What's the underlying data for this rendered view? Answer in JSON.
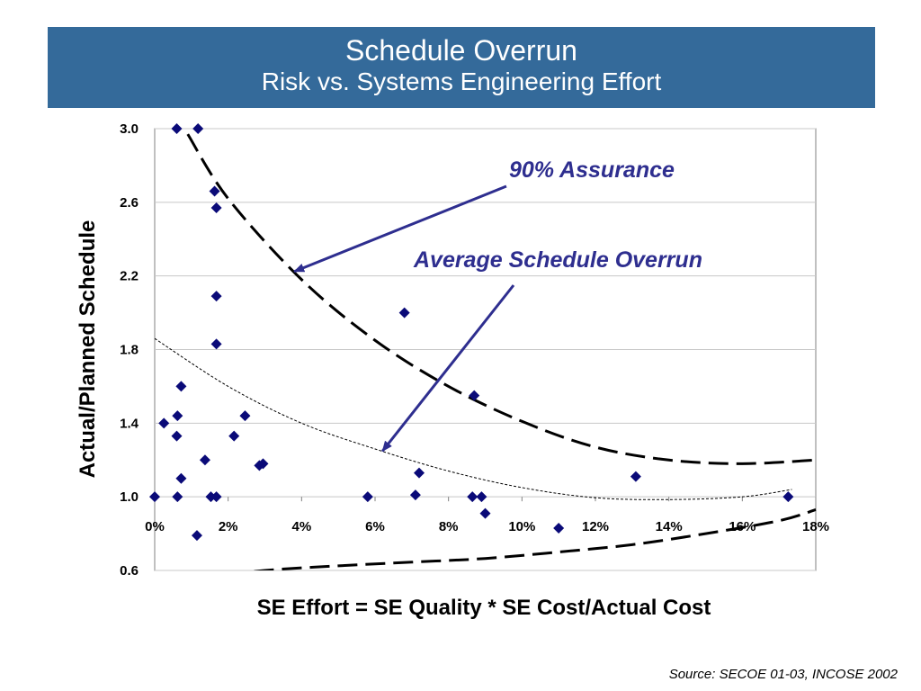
{
  "header": {
    "title": "Schedule Overrun",
    "subtitle": "Risk vs. Systems Engineering Effort"
  },
  "source": "Source: SECOE 01-03, INCOSE 2002",
  "colors": {
    "banner": "#346a9a",
    "marker": "#0a0a78",
    "annotation": "#2e2e8f"
  },
  "chart_data": {
    "type": "scatter",
    "xlabel": "SE Effort = SE Quality * SE Cost/Actual Cost",
    "ylabel": "Actual/Planned Schedule",
    "xlim": [
      0,
      0.18
    ],
    "ylim": [
      0.6,
      3.0
    ],
    "x_ticks": [
      "0%",
      "2%",
      "4%",
      "6%",
      "8%",
      "10%",
      "12%",
      "14%",
      "16%",
      "18%"
    ],
    "y_ticks": [
      "3.0",
      "2.6",
      "2.2",
      "1.8",
      "1.4",
      "1.0",
      "0.6"
    ],
    "grid": "horizontal",
    "points": [
      {
        "x": 0.0,
        "y": 1.0
      },
      {
        "x": 0.0025,
        "y": 1.4
      },
      {
        "x": 0.006,
        "y": 3.0
      },
      {
        "x": 0.006,
        "y": 1.33
      },
      {
        "x": 0.0062,
        "y": 1.44
      },
      {
        "x": 0.0062,
        "y": 1.0
      },
      {
        "x": 0.0072,
        "y": 1.6
      },
      {
        "x": 0.0072,
        "y": 1.1
      },
      {
        "x": 0.0115,
        "y": 0.79
      },
      {
        "x": 0.0118,
        "y": 3.0
      },
      {
        "x": 0.0137,
        "y": 1.2
      },
      {
        "x": 0.0153,
        "y": 1.0
      },
      {
        "x": 0.0163,
        "y": 2.66
      },
      {
        "x": 0.0168,
        "y": 1.0
      },
      {
        "x": 0.0168,
        "y": 2.57
      },
      {
        "x": 0.0168,
        "y": 2.09
      },
      {
        "x": 0.0168,
        "y": 1.83
      },
      {
        "x": 0.0216,
        "y": 1.33
      },
      {
        "x": 0.0246,
        "y": 1.44
      },
      {
        "x": 0.0285,
        "y": 1.17
      },
      {
        "x": 0.0295,
        "y": 1.18
      },
      {
        "x": 0.058,
        "y": 1.0
      },
      {
        "x": 0.068,
        "y": 2.0
      },
      {
        "x": 0.071,
        "y": 1.01
      },
      {
        "x": 0.072,
        "y": 1.13
      },
      {
        "x": 0.0865,
        "y": 1.0
      },
      {
        "x": 0.087,
        "y": 1.55
      },
      {
        "x": 0.089,
        "y": 1.0
      },
      {
        "x": 0.09,
        "y": 0.91
      },
      {
        "x": 0.11,
        "y": 0.83
      },
      {
        "x": 0.131,
        "y": 1.11
      },
      {
        "x": 0.1725,
        "y": 1.0
      }
    ],
    "curves": [
      {
        "name": "90% Assurance",
        "style": "long-dash",
        "x": [
          0.009,
          0.02,
          0.04,
          0.06,
          0.08,
          0.1,
          0.12,
          0.14,
          0.16,
          0.18
        ],
        "y": [
          2.97,
          2.62,
          2.18,
          1.85,
          1.6,
          1.41,
          1.27,
          1.2,
          1.18,
          1.2
        ]
      },
      {
        "name": "Average Schedule Overrun",
        "style": "short-dash",
        "x": [
          0.0,
          0.02,
          0.04,
          0.06,
          0.08,
          0.1,
          0.12,
          0.14,
          0.16,
          0.1735
        ],
        "y": [
          1.86,
          1.6,
          1.4,
          1.26,
          1.14,
          1.05,
          0.995,
          0.985,
          1.0,
          1.04
        ]
      },
      {
        "name": "lower bound",
        "style": "long-dash",
        "x": [
          0.012,
          0.03,
          0.05,
          0.07,
          0.09,
          0.11,
          0.13,
          0.15,
          0.17,
          0.18
        ],
        "y": [
          0.56,
          0.6,
          0.625,
          0.645,
          0.665,
          0.7,
          0.74,
          0.8,
          0.87,
          0.93
        ]
      }
    ],
    "annotations": [
      {
        "text": "90% Assurance",
        "points_to_curve": "90% Assurance"
      },
      {
        "text": "Average Schedule Overrun",
        "points_to_curve": "Average Schedule Overrun"
      }
    ]
  }
}
